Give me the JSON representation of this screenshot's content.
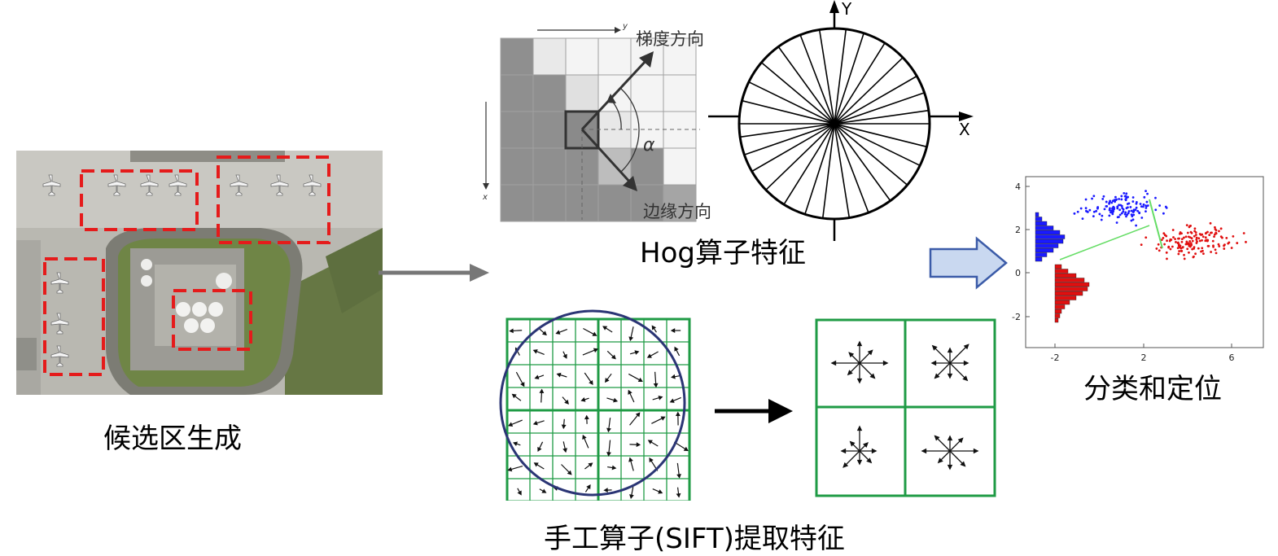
{
  "stages": {
    "proposal": {
      "caption": "候选区生成"
    },
    "hog": {
      "caption": "Hog算子特征",
      "gradient_label": "梯度方向",
      "edge_label": "边缘方向",
      "angle_label": "α",
      "y_axis_label": "y",
      "x_axis_label": "x",
      "polar_x": "X",
      "polar_y": "Y"
    },
    "sift": {
      "caption": "手工算子(SIFT)提取特征"
    },
    "classify": {
      "caption": "分类和定位",
      "yticks": [
        "4",
        "2",
        "0",
        "-2"
      ],
      "xticks": [
        "-2",
        "2",
        "6"
      ]
    }
  },
  "colors": {
    "proposal_box": "#e51b1b",
    "grid_green": "#1f9b45",
    "circle_navy": "#2b3575",
    "arrow_gray": "#777777",
    "block_arrow_fill": "#c9d8f0",
    "block_arrow_stroke": "#3b5ba8",
    "scatter_blue": "#1a1aff",
    "scatter_red": "#e01010",
    "scatter_line": "#66dd66"
  }
}
